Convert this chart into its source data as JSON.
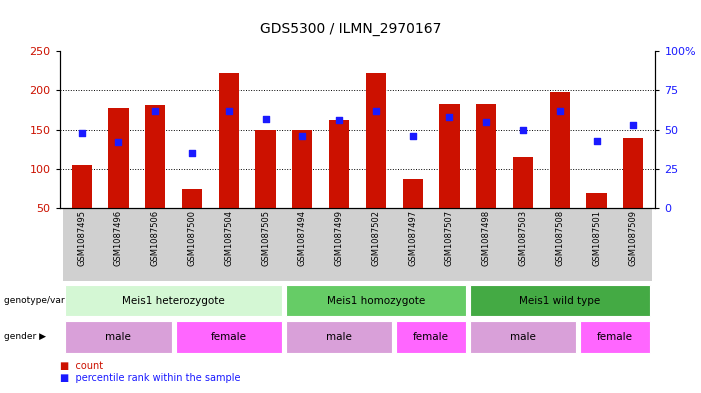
{
  "title": "GDS5300 / ILMN_2970167",
  "samples": [
    "GSM1087495",
    "GSM1087496",
    "GSM1087506",
    "GSM1087500",
    "GSM1087504",
    "GSM1087505",
    "GSM1087494",
    "GSM1087499",
    "GSM1087502",
    "GSM1087497",
    "GSM1087507",
    "GSM1087498",
    "GSM1087503",
    "GSM1087508",
    "GSM1087501",
    "GSM1087509"
  ],
  "counts": [
    105,
    178,
    181,
    74,
    222,
    150,
    150,
    162,
    222,
    87,
    183,
    183,
    115,
    198,
    70,
    140
  ],
  "percentiles": [
    48,
    42,
    62,
    35,
    62,
    57,
    46,
    56,
    62,
    46,
    58,
    55,
    50,
    62,
    43,
    53
  ],
  "y_min": 50,
  "y_max": 250,
  "y_ticks_left": [
    50,
    100,
    150,
    200,
    250
  ],
  "y_ticks_right": [
    0,
    25,
    50,
    75,
    100
  ],
  "bar_color": "#cc1100",
  "dot_color": "#1a1aff",
  "dot_size": 25,
  "genotype_groups": [
    {
      "label": "Meis1 heterozygote",
      "start": 0,
      "end": 6,
      "color": "#d4f7d4"
    },
    {
      "label": "Meis1 homozygote",
      "start": 6,
      "end": 11,
      "color": "#66cc66"
    },
    {
      "label": "Meis1 wild type",
      "start": 11,
      "end": 16,
      "color": "#44aa44"
    }
  ],
  "gender_groups": [
    {
      "label": "male",
      "start": 0,
      "end": 3,
      "color": "#d9a0d9"
    },
    {
      "label": "female",
      "start": 3,
      "end": 6,
      "color": "#ff66ff"
    },
    {
      "label": "male",
      "start": 6,
      "end": 9,
      "color": "#d9a0d9"
    },
    {
      "label": "female",
      "start": 9,
      "end": 11,
      "color": "#ff66ff"
    },
    {
      "label": "male",
      "start": 11,
      "end": 14,
      "color": "#d9a0d9"
    },
    {
      "label": "female",
      "start": 14,
      "end": 16,
      "color": "#ff66ff"
    }
  ],
  "genotype_label": "genotype/variation",
  "gender_label": "gender",
  "bar_width": 0.55,
  "bg_color": "#d0d0d0",
  "grid_vals": [
    100,
    150,
    200
  ],
  "right_axis_pct_label": "100%"
}
